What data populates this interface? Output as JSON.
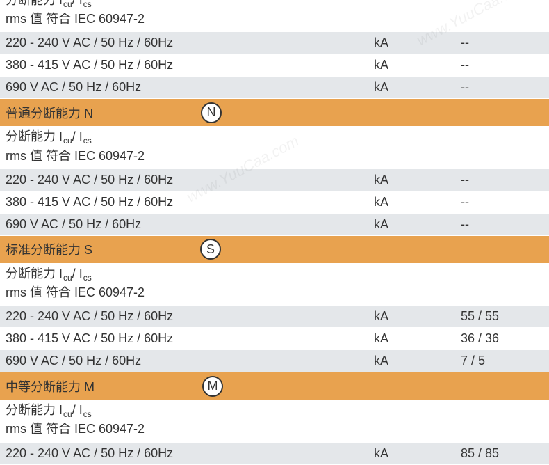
{
  "header_fragment": {
    "capacity_prefix": "分断能力 I",
    "sub_cu": "cu",
    "slash": " / I",
    "sub_cs": "cs",
    "rms_line": "rms 值 符合 IEC 60947-2"
  },
  "section_top": {
    "rows": [
      {
        "label": "220 - 240 V AC / 50 Hz / 60Hz",
        "unit": "kA",
        "value": "--",
        "bg": "gray"
      },
      {
        "label": "380 - 415 V AC / 50 Hz / 60Hz",
        "unit": "kA",
        "value": "--",
        "bg": "white"
      },
      {
        "label": "690 V AC / 50 Hz / 60Hz",
        "unit": "kA",
        "value": "--",
        "bg": "gray"
      }
    ]
  },
  "section_n": {
    "title": "普通分断能力 N",
    "badge": "N",
    "header": {
      "capacity_prefix": "分断能力 I",
      "sub_cu": "cu",
      "slash": " / I",
      "sub_cs": "cs",
      "rms_line": "rms 值 符合 IEC 60947-2"
    },
    "rows": [
      {
        "label": "220 - 240 V AC / 50 Hz / 60Hz",
        "unit": "kA",
        "value": "--",
        "bg": "gray"
      },
      {
        "label": "380 - 415 V AC / 50 Hz / 60Hz",
        "unit": "kA",
        "value": "--",
        "bg": "white"
      },
      {
        "label": "690 V AC / 50 Hz / 60Hz",
        "unit": "kA",
        "value": "--",
        "bg": "gray"
      }
    ]
  },
  "section_s": {
    "title": "标准分断能力 S",
    "badge": "S",
    "header": {
      "capacity_prefix": "分断能力 I",
      "sub_cu": "cu",
      "slash": " / I",
      "sub_cs": "cs",
      "rms_line": "rms 值 符合 IEC 60947-2"
    },
    "rows": [
      {
        "label": "220 - 240 V AC / 50 Hz / 60Hz",
        "unit": "kA",
        "value": "55 / 55",
        "bg": "gray"
      },
      {
        "label": "380 - 415 V AC / 50 Hz / 60Hz",
        "unit": "kA",
        "value": "36 / 36",
        "bg": "white"
      },
      {
        "label": "690 V AC / 50 Hz / 60Hz",
        "unit": "kA",
        "value": "7 / 5",
        "bg": "gray"
      }
    ]
  },
  "section_m": {
    "title": "中等分断能力 M",
    "badge": "M",
    "header": {
      "capacity_prefix": "分断能力 I",
      "sub_cu": "cu",
      "slash": " / I",
      "sub_cs": "cs",
      "rms_line": "rms 值 符合 IEC 60947-2"
    },
    "rows": [
      {
        "label": "220 - 240 V AC / 50 Hz / 60Hz",
        "unit": "kA",
        "value": "85 / 85",
        "bg": "gray"
      }
    ]
  },
  "colors": {
    "row_gray": "#e4e7ea",
    "row_white": "#ffffff",
    "section_orange": "#e8a24f",
    "text": "#333333",
    "circle_border": "#333333",
    "circle_bg": "#ffffff"
  },
  "watermark": "www.YuuCaa.com"
}
